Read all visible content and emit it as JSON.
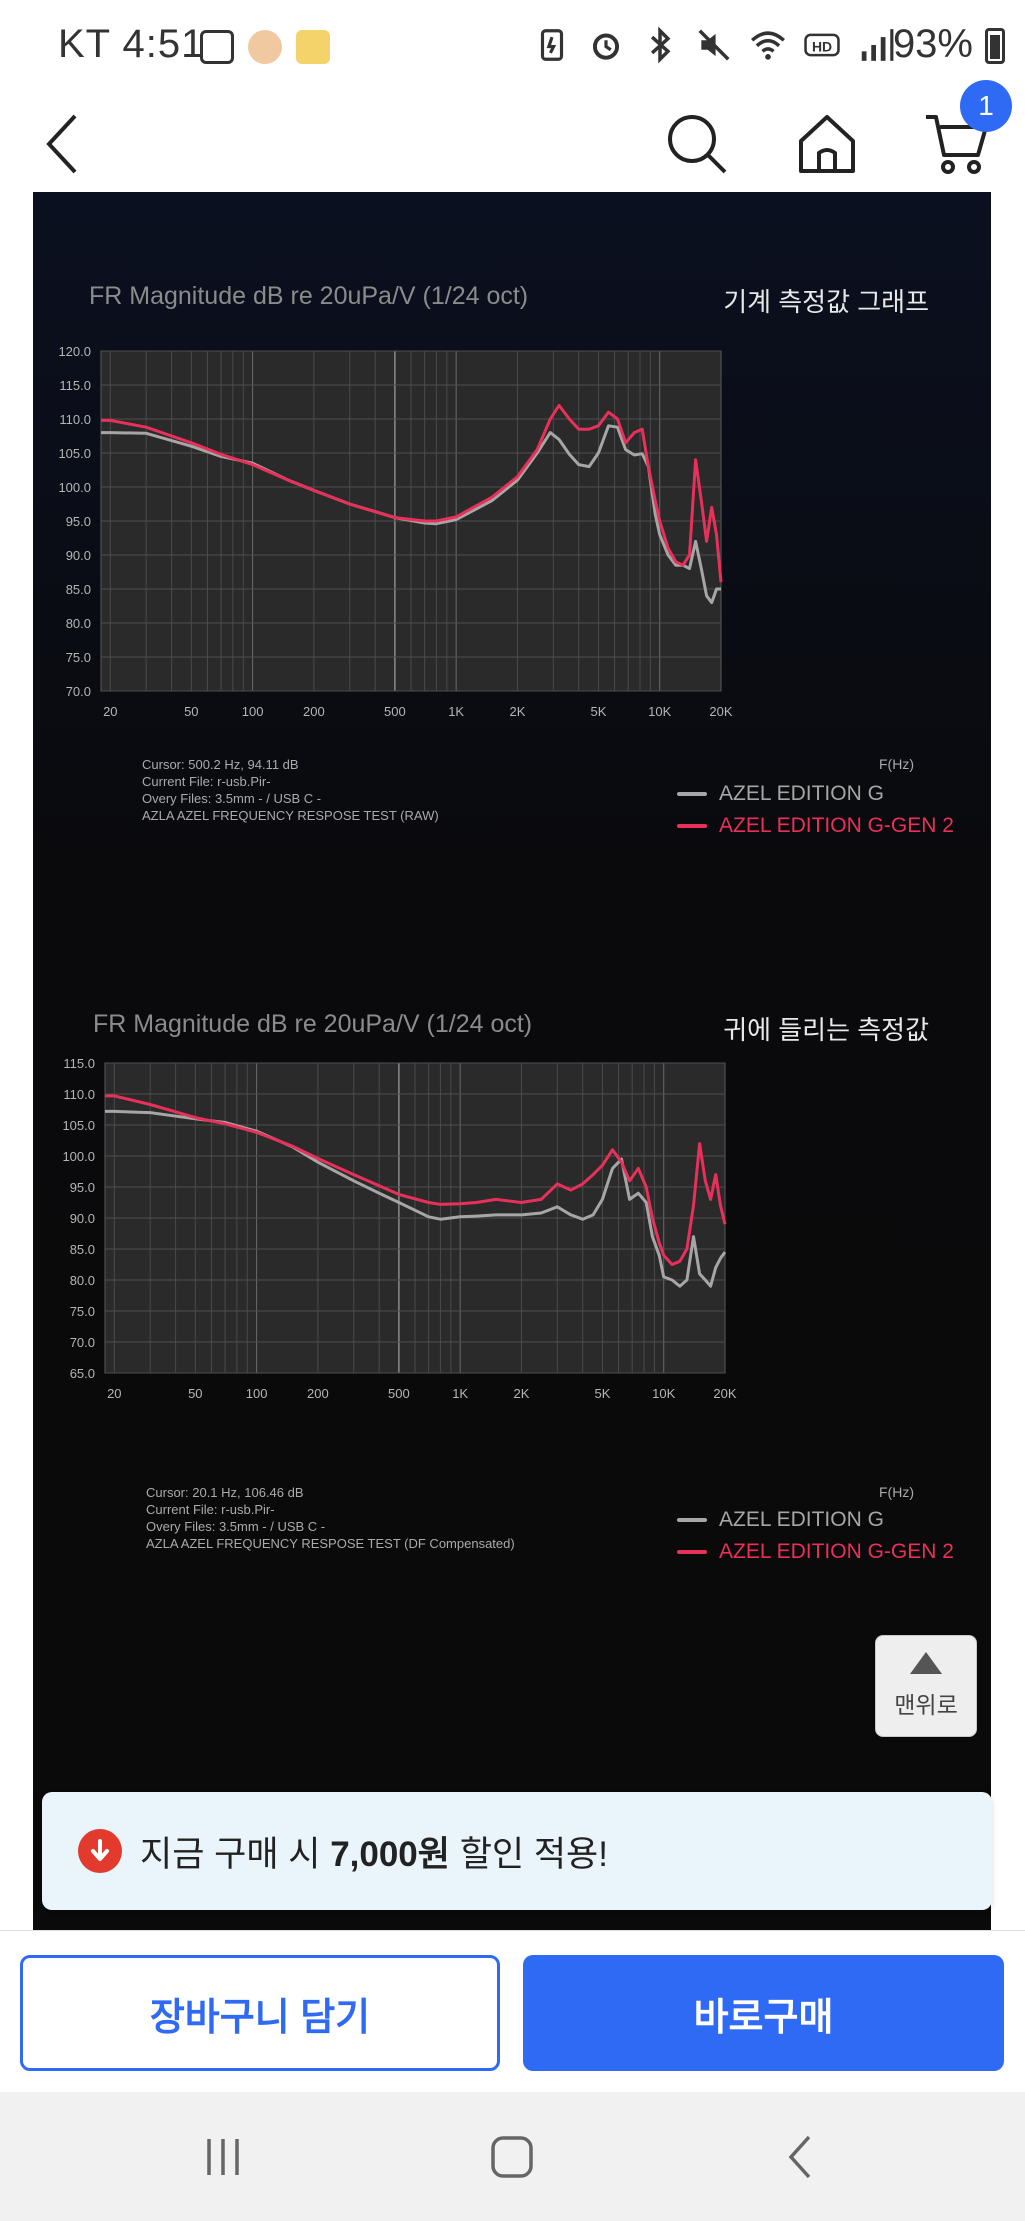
{
  "status_bar": {
    "carrier_time": "KT 4:51",
    "battery": "93%"
  },
  "top_nav": {
    "cart_count": "1"
  },
  "charts": [
    {
      "title": "FR Magnitude dB re 20uPa/V (1/24 oct)",
      "subtitle": "기계 측정값 그래프",
      "cursor": "Cursor: 500.2 Hz, 94.11 dB",
      "current_file": "Current File: r-usb.Pir-",
      "overy_files": "Overy Files: 3.5mm - / USB C -",
      "test_name": "AZLA AZEL FREQUENCY RESPOSE TEST (RAW)",
      "freq_unit": "F(Hz)"
    },
    {
      "title": "FR Magnitude dB re 20uPa/V (1/24 oct)",
      "subtitle": "귀에 들리는 측정값",
      "cursor": "Cursor: 20.1 Hz, 106.46 dB",
      "current_file": "Current File: r-usb.Pir-",
      "overy_files": "Overy Files: 3.5mm - / USB C -",
      "test_name": "AZLA AZEL FREQUENCY RESPOSE TEST (DF Compensated)",
      "freq_unit": "F(Hz)"
    }
  ],
  "chart_data": [
    {
      "type": "line",
      "title": "FR Magnitude dB re 20uPa/V (1/24 oct)",
      "xlabel": "F(Hz)",
      "xscale": "log",
      "xlim": [
        18,
        20000
      ],
      "ylim": [
        70,
        120
      ],
      "x_ticks": [
        "20",
        "50",
        "100",
        "200",
        "500",
        "1K",
        "2K",
        "5K",
        "10K",
        "20K"
      ],
      "y_ticks": [
        "120.0",
        "115.0",
        "110.0",
        "105.0",
        "100.0",
        "95.0",
        "90.0",
        "85.0",
        "80.0",
        "75.0",
        "70.0"
      ],
      "grid": true,
      "legend_position": "bottom-right",
      "series": [
        {
          "name": "AZEL EDITION G",
          "color": "#a6a6a6",
          "x": [
            18,
            20,
            30,
            50,
            70,
            100,
            150,
            200,
            300,
            500,
            700,
            800,
            1000,
            1500,
            2000,
            2500,
            2900,
            3200,
            3600,
            4000,
            4500,
            5000,
            5600,
            6200,
            6800,
            7500,
            8200,
            8800,
            9500,
            10000,
            11000,
            12000,
            13000,
            14000,
            15000,
            16000,
            17000,
            18000,
            19000,
            20000
          ],
          "y": [
            108,
            108,
            107.9,
            106,
            104.5,
            103.5,
            101,
            99.5,
            97.5,
            95.5,
            94.7,
            94.6,
            95.2,
            98,
            101,
            105,
            108,
            107,
            104.8,
            103.3,
            103,
            105,
            109,
            108.8,
            105.5,
            104.7,
            104.9,
            103,
            96,
            93,
            90,
            88.5,
            88.5,
            88,
            92,
            88,
            84,
            83,
            85,
            85
          ]
        },
        {
          "name": "AZEL EDITION G-GEN 2",
          "color": "#e8305a",
          "x": [
            18,
            20,
            30,
            50,
            70,
            100,
            150,
            200,
            300,
            500,
            700,
            800,
            1000,
            1500,
            2000,
            2500,
            2900,
            3200,
            3600,
            4000,
            4500,
            5000,
            5600,
            6200,
            6800,
            7500,
            8200,
            8800,
            9500,
            10000,
            11000,
            12000,
            13000,
            14000,
            15000,
            16000,
            17000,
            18000,
            19000,
            20000
          ],
          "y": [
            109.8,
            109.8,
            108.8,
            106.5,
            104.8,
            103.3,
            101,
            99.5,
            97.5,
            95.5,
            95,
            95,
            95.6,
            98.5,
            101.5,
            105.5,
            110,
            112,
            110,
            108.5,
            108.5,
            109,
            111,
            110,
            106.5,
            108,
            108.5,
            103,
            98,
            95,
            91,
            89,
            88.5,
            90,
            104,
            98,
            92,
            97,
            93,
            86
          ]
        }
      ]
    },
    {
      "type": "line",
      "title": "FR Magnitude dB re 20uPa/V (1/24 oct)",
      "xlabel": "F(Hz)",
      "xscale": "log",
      "xlim": [
        18,
        20000
      ],
      "ylim": [
        65,
        115
      ],
      "x_ticks": [
        "20",
        "50",
        "100",
        "200",
        "500",
        "1K",
        "2K",
        "5K",
        "10K",
        "20K"
      ],
      "y_ticks": [
        "115.0",
        "110.0",
        "105.0",
        "100.0",
        "95.0",
        "90.0",
        "85.0",
        "80.0",
        "75.0",
        "70.0",
        "65.0"
      ],
      "grid": true,
      "legend_position": "bottom-right",
      "series": [
        {
          "name": "AZEL EDITION G",
          "color": "#a6a6a6",
          "x": [
            18,
            20,
            30,
            50,
            70,
            100,
            150,
            200,
            300,
            400,
            500,
            700,
            800,
            1000,
            1200,
            1500,
            2000,
            2500,
            3000,
            3500,
            4000,
            4500,
            5000,
            5600,
            6200,
            6800,
            7500,
            8200,
            8800,
            9500,
            10000,
            11000,
            12000,
            13000,
            14000,
            15000,
            16000,
            17000,
            18000,
            19000,
            20000
          ],
          "y": [
            107.2,
            107.2,
            107,
            106,
            105.4,
            104,
            101.5,
            99,
            96,
            94,
            92.5,
            90.2,
            89.8,
            90.2,
            90.3,
            90.5,
            90.5,
            90.8,
            91.8,
            90.5,
            89.8,
            90.5,
            93,
            98,
            99.5,
            93,
            94,
            92.5,
            87,
            84,
            80.5,
            80,
            79,
            80,
            87,
            81,
            80,
            79,
            82,
            83.5,
            84.5
          ]
        },
        {
          "name": "AZEL EDITION G-GEN 2",
          "color": "#e8305a",
          "x": [
            18,
            20,
            30,
            50,
            70,
            100,
            150,
            200,
            300,
            400,
            500,
            700,
            800,
            1000,
            1200,
            1500,
            2000,
            2500,
            3000,
            3500,
            4000,
            4500,
            5000,
            5600,
            6200,
            6800,
            7500,
            8200,
            8800,
            9500,
            10000,
            11000,
            12000,
            13000,
            14000,
            15000,
            16000,
            17000,
            18000,
            19000,
            20000
          ],
          "y": [
            109.7,
            109.7,
            108.3,
            106.2,
            105.2,
            103.8,
            101.6,
            99.6,
            97,
            95.2,
            93.8,
            92.5,
            92.2,
            92.3,
            92.5,
            93,
            92.5,
            93,
            95.5,
            94.5,
            95.5,
            97,
            98.5,
            101,
            99,
            96,
            98,
            95,
            90,
            86,
            84,
            82.5,
            83,
            85,
            92,
            102,
            96,
            93,
            97,
            92,
            89
          ]
        }
      ]
    }
  ],
  "legend": {
    "series_a": "AZEL EDITION G",
    "series_b": "AZEL EDITION G-GEN 2"
  },
  "top_button": {
    "label": "맨위로"
  },
  "promo": {
    "prefix": "지금 구매 시 ",
    "amount": "7,000원",
    "suffix": " 할인 적용!"
  },
  "bottom_bar": {
    "cart_label": "장바구니 담기",
    "buy_label": "바로구매"
  },
  "colors": {
    "accent": "#2f6af5",
    "series_a": "#a6a6a6",
    "series_b": "#e8305a",
    "panel": "#0a0a0c"
  }
}
